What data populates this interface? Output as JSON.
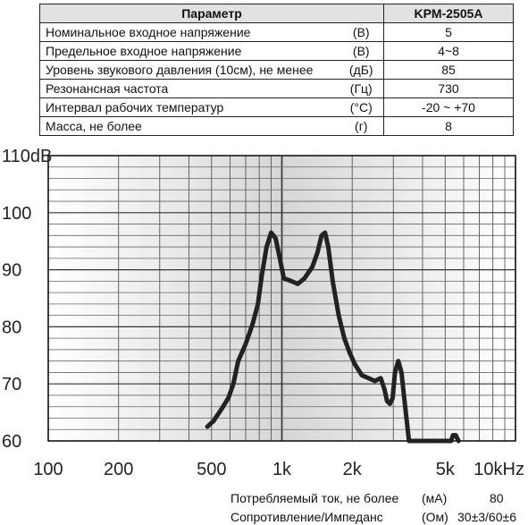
{
  "table": {
    "header": {
      "param": "Параметр",
      "model": "KPM-2505A"
    },
    "rows": [
      {
        "name": "Номинальное входное напряжение",
        "unit": "(В)",
        "value": "5"
      },
      {
        "name": "Предельное входное напряжение",
        "unit": "(В)",
        "value": "4~8"
      },
      {
        "name": "Уровень звукового давления (10см), не менее",
        "unit": "(дБ)",
        "value": "85"
      },
      {
        "name": "Резонансная частота",
        "unit": "(Гц)",
        "value": "730"
      },
      {
        "name": "Интервал рабочих температур",
        "unit": "(°С)",
        "value": "-20 ~ +70"
      },
      {
        "name": "Масса, не более",
        "unit": "(г)",
        "value": "8"
      }
    ]
  },
  "chart_data": {
    "type": "line",
    "x_scale": "log",
    "xlim": [
      100,
      10000
    ],
    "ylim": [
      60,
      110
    ],
    "x_ticks": [
      {
        "value": 100,
        "label": "100"
      },
      {
        "value": 200,
        "label": "200"
      },
      {
        "value": 500,
        "label": "500"
      },
      {
        "value": 1000,
        "label": "1k"
      },
      {
        "value": 2000,
        "label": "2k"
      },
      {
        "value": 5000,
        "label": "5k"
      },
      {
        "value": 10000,
        "label": "10kHz"
      }
    ],
    "y_ticks": [
      {
        "value": 110,
        "label": "110dB"
      },
      {
        "value": 100,
        "label": "100"
      },
      {
        "value": 90,
        "label": "90"
      },
      {
        "value": 80,
        "label": "80"
      },
      {
        "value": 70,
        "label": "70"
      },
      {
        "value": 60,
        "label": "60"
      }
    ],
    "grid": true,
    "series": [
      {
        "color": "#222222",
        "points": [
          [
            480,
            62.5
          ],
          [
            510,
            63.5
          ],
          [
            550,
            65.5
          ],
          [
            590,
            67.5
          ],
          [
            620,
            70
          ],
          [
            650,
            74
          ],
          [
            700,
            77
          ],
          [
            750,
            80.5
          ],
          [
            790,
            84
          ],
          [
            820,
            89
          ],
          [
            860,
            94
          ],
          [
            900,
            96.5
          ],
          [
            940,
            95.5
          ],
          [
            980,
            92
          ],
          [
            1020,
            88.5
          ],
          [
            1100,
            88
          ],
          [
            1170,
            87.5
          ],
          [
            1250,
            88.5
          ],
          [
            1350,
            90.5
          ],
          [
            1420,
            93
          ],
          [
            1480,
            96
          ],
          [
            1530,
            96.5
          ],
          [
            1580,
            94
          ],
          [
            1650,
            88
          ],
          [
            1750,
            82
          ],
          [
            1850,
            78
          ],
          [
            1950,
            75.5
          ],
          [
            2050,
            73.5
          ],
          [
            2200,
            71.5
          ],
          [
            2350,
            71
          ],
          [
            2500,
            70.5
          ],
          [
            2650,
            71
          ],
          [
            2750,
            69
          ],
          [
            2820,
            67
          ],
          [
            2900,
            66.5
          ],
          [
            2980,
            67.5
          ],
          [
            3050,
            72
          ],
          [
            3150,
            74
          ],
          [
            3250,
            72
          ],
          [
            3350,
            67
          ],
          [
            3500,
            60
          ],
          [
            5300,
            60
          ],
          [
            5400,
            61
          ],
          [
            5550,
            61
          ],
          [
            5700,
            60
          ]
        ]
      }
    ]
  },
  "footer": {
    "rows": [
      {
        "name": "Потребляемый ток, не более",
        "unit": "(мА)",
        "value": "80"
      },
      {
        "name": "Сопротивление/Импеданс",
        "unit": "(Ом)",
        "value": "30±3/60±6"
      }
    ]
  }
}
